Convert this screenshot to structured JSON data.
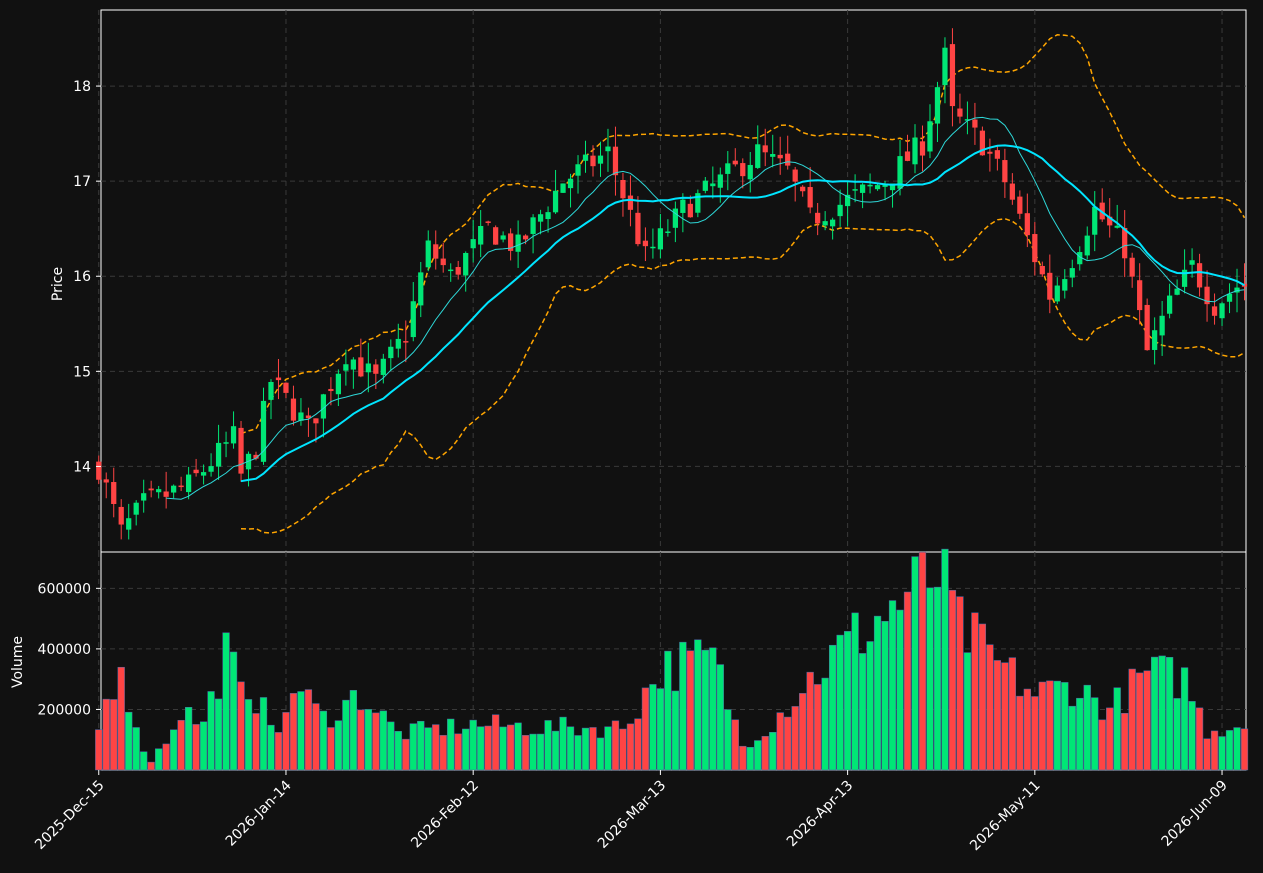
{
  "chart_data": [
    {
      "type": "candlestick",
      "panel": "price",
      "ylabel": "Price",
      "ylim": [
        13.1,
        18.8
      ],
      "yticks": [
        14,
        15,
        16,
        17,
        18
      ],
      "grid": true,
      "colors": {
        "up": "#00e676",
        "down": "#ff4444",
        "ma_short": "#2ed8d8",
        "ma_long": "#00e5ff",
        "bands": "#ffa500",
        "background": "#111111",
        "grid": "#3a3a3a",
        "frame": "#ffffff"
      },
      "series": [
        {
          "name": "Close",
          "anchors": [
            [
              0,
              14.0
            ],
            [
              3,
              13.3
            ],
            [
              6,
              13.6
            ],
            [
              12,
              13.8
            ],
            [
              18,
              14.3
            ],
            [
              19,
              13.9
            ],
            [
              21,
              14.2
            ],
            [
              23,
              14.9
            ],
            [
              26,
              14.6
            ],
            [
              28,
              14.4
            ],
            [
              33,
              15.2
            ],
            [
              37,
              14.9
            ],
            [
              41,
              15.4
            ],
            [
              44,
              16.3
            ],
            [
              47,
              16.0
            ],
            [
              52,
              16.5
            ],
            [
              56,
              16.3
            ],
            [
              62,
              17.0
            ],
            [
              68,
              17.3
            ],
            [
              73,
              16.2
            ],
            [
              78,
              16.7
            ],
            [
              83,
              17.0
            ],
            [
              88,
              17.3
            ],
            [
              92,
              17.1
            ],
            [
              95,
              16.6
            ],
            [
              100,
              16.8
            ],
            [
              105,
              17.0
            ],
            [
              110,
              17.4
            ],
            [
              113,
              18.3
            ],
            [
              114,
              17.7
            ],
            [
              118,
              17.4
            ],
            [
              121,
              17.0
            ],
            [
              124,
              16.4
            ],
            [
              127,
              15.8
            ],
            [
              130,
              16.2
            ],
            [
              133,
              16.7
            ],
            [
              137,
              16.3
            ],
            [
              140,
              15.2
            ],
            [
              143,
              15.7
            ],
            [
              146,
              16.1
            ],
            [
              149,
              15.7
            ],
            [
              152,
              15.9
            ]
          ]
        },
        {
          "name": "Volume",
          "anchors": [
            [
              0,
              140000
            ],
            [
              3,
              380000
            ],
            [
              5,
              120000
            ],
            [
              7,
              30000
            ],
            [
              9,
              100000
            ],
            [
              11,
              200000
            ],
            [
              14,
              150000
            ],
            [
              17,
              390000
            ],
            [
              20,
              190000
            ],
            [
              22,
              285000
            ],
            [
              24,
              100000
            ],
            [
              26,
              285000
            ],
            [
              30,
              170000
            ],
            [
              35,
              250000
            ],
            [
              40,
              120000
            ],
            [
              50,
              150000
            ],
            [
              60,
              140000
            ],
            [
              70,
              140000
            ],
            [
              75,
              330000
            ],
            [
              78,
              350000
            ],
            [
              82,
              370000
            ],
            [
              86,
              80000
            ],
            [
              90,
              160000
            ],
            [
              95,
              300000
            ],
            [
              100,
              420000
            ],
            [
              112,
              650000
            ],
            [
              115,
              470000
            ],
            [
              120,
              350000
            ],
            [
              125,
              250000
            ],
            [
              130,
              280000
            ],
            [
              135,
              200000
            ],
            [
              140,
              320000
            ],
            [
              145,
              300000
            ],
            [
              148,
              130000
            ],
            [
              152,
              150000
            ]
          ]
        }
      ],
      "overlays": [
        "Moving average (short)",
        "Moving average (long)",
        "Bollinger upper band",
        "Bollinger lower band"
      ]
    },
    {
      "type": "bar",
      "panel": "volume",
      "ylabel": "Volume",
      "ylim": [
        0,
        720000
      ],
      "yticks": [
        200000,
        400000,
        600000
      ],
      "grid": true
    }
  ],
  "x_axis": {
    "tick_labels": [
      "2025-Dec-15",
      "2026-Jan-14",
      "2026-Feb-12",
      "2026-Mar-13",
      "2026-Apr-13",
      "2026-May-11",
      "2026-Jun-09"
    ],
    "tick_indices": [
      0,
      25,
      50,
      75,
      100,
      125,
      150
    ],
    "n_bars": 154
  }
}
